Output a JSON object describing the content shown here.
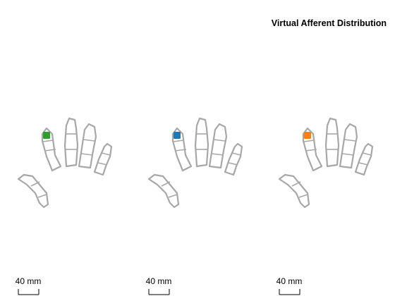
{
  "figure": {
    "title": "Virtual Afferent Distribution",
    "panels": [
      {
        "afferent_color": "#2ca02c",
        "scale_label": "40 mm"
      },
      {
        "afferent_color": "#1f77b4",
        "scale_label": "40 mm"
      },
      {
        "afferent_color": "#ff7f0e",
        "scale_label": "40 mm"
      }
    ]
  }
}
